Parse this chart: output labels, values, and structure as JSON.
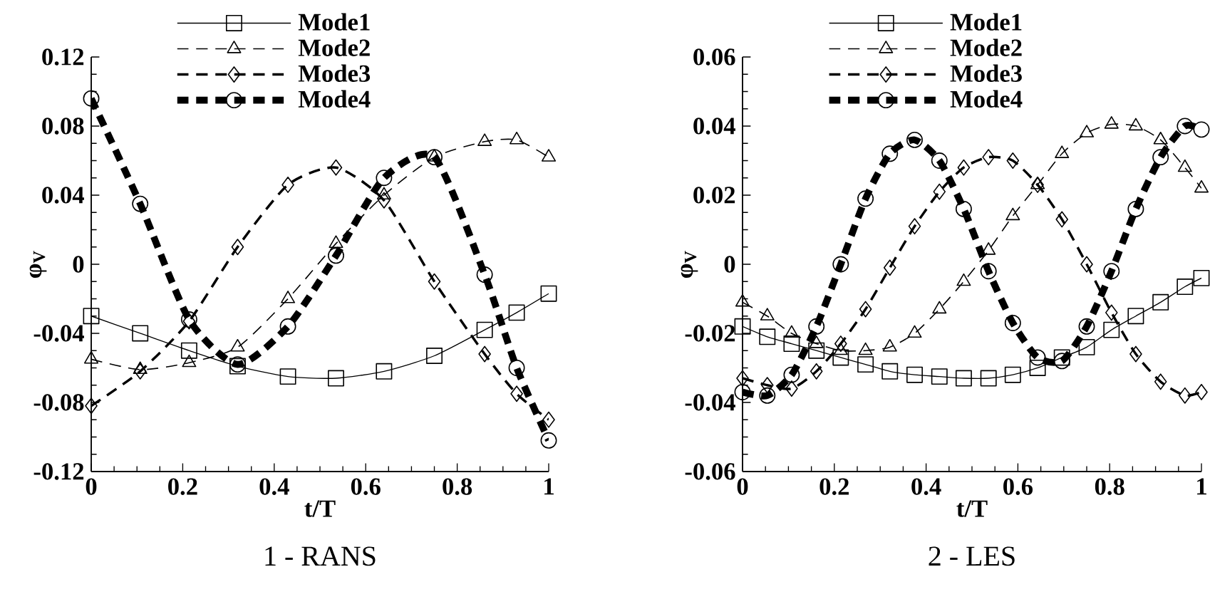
{
  "chart_data": [
    {
      "type": "line",
      "title": "1 - RANS",
      "xlabel": "t/T",
      "ylabel": "φ$_{V}$",
      "legend": "top",
      "x": [
        0,
        0.107,
        0.214,
        0.32,
        0.43,
        0.535,
        0.64,
        0.75,
        0.86,
        0.93,
        1
      ],
      "xlim": [
        0,
        1
      ],
      "ylim": [
        -0.12,
        0.12
      ],
      "xticks": [
        0,
        0.2,
        0.4,
        0.6,
        0.8,
        1
      ],
      "yticks": [
        -0.12,
        -0.08,
        -0.04,
        0,
        0.04,
        0.08,
        0.12
      ],
      "series": [
        {
          "name": "Mode1",
          "color": "#000000",
          "marker": "square",
          "line_style": "solid",
          "values": [
            -0.03,
            -0.04,
            -0.05,
            -0.059,
            -0.065,
            -0.066,
            -0.062,
            -0.053,
            -0.038,
            -0.028,
            -0.017
          ]
        },
        {
          "name": "Mode2",
          "color": "#000000",
          "marker": "triangle",
          "line_style": "dashed",
          "values": [
            -0.055,
            -0.061,
            -0.057,
            -0.048,
            -0.02,
            0.012,
            0.04,
            0.062,
            0.071,
            0.072,
            0.062
          ]
        },
        {
          "name": "Mode3",
          "color": "#000000",
          "marker": "diamond",
          "line_style": "dashed",
          "values": [
            -0.082,
            -0.062,
            -0.033,
            0.01,
            0.046,
            0.056,
            0.037,
            -0.01,
            -0.052,
            -0.075,
            -0.09
          ]
        },
        {
          "name": "Mode4",
          "color": "#000000",
          "marker": "circle",
          "line_style": "dashed",
          "values": [
            0.096,
            0.035,
            -0.032,
            -0.058,
            -0.036,
            0.005,
            0.05,
            0.062,
            -0.006,
            -0.06,
            -0.102
          ]
        }
      ]
    },
    {
      "type": "line",
      "title": "2 - LES",
      "xlabel": "t/T",
      "ylabel": "φ$_{V}$",
      "legend": "top",
      "x": [
        0,
        0.054,
        0.107,
        0.161,
        0.214,
        0.268,
        0.321,
        0.375,
        0.429,
        0.482,
        0.536,
        0.589,
        0.643,
        0.696,
        0.75,
        0.804,
        0.857,
        0.911,
        0.964,
        1
      ],
      "xlim": [
        0,
        1
      ],
      "ylim": [
        -0.06,
        0.06
      ],
      "xticks": [
        0,
        0.2,
        0.4,
        0.6,
        0.8,
        1
      ],
      "yticks": [
        -0.06,
        -0.04,
        -0.02,
        0,
        0.02,
        0.04,
        0.06
      ],
      "series": [
        {
          "name": "Mode1",
          "color": "#000000",
          "marker": "square",
          "line_style": "solid",
          "values": [
            -0.018,
            -0.021,
            -0.023,
            -0.025,
            -0.027,
            -0.029,
            -0.031,
            -0.032,
            -0.0325,
            -0.033,
            -0.033,
            -0.032,
            -0.03,
            -0.027,
            -0.024,
            -0.019,
            -0.015,
            -0.011,
            -0.0065,
            -0.004
          ]
        },
        {
          "name": "Mode2",
          "color": "#000000",
          "marker": "triangle",
          "line_style": "dashed",
          "values": [
            -0.011,
            -0.015,
            -0.02,
            -0.023,
            -0.025,
            -0.025,
            -0.024,
            -0.02,
            -0.013,
            -0.005,
            0.004,
            0.014,
            0.023,
            0.032,
            0.038,
            0.0405,
            0.04,
            0.036,
            0.028,
            0.022
          ]
        },
        {
          "name": "Mode3",
          "color": "#000000",
          "marker": "diamond",
          "line_style": "dashed",
          "values": [
            -0.033,
            -0.035,
            -0.036,
            -0.031,
            -0.023,
            -0.013,
            -0.001,
            0.011,
            0.021,
            0.028,
            0.031,
            0.03,
            0.023,
            0.013,
            0,
            -0.014,
            -0.026,
            -0.034,
            -0.038,
            -0.037
          ]
        },
        {
          "name": "Mode4",
          "color": "#000000",
          "marker": "circle",
          "line_style": "dashed",
          "values": [
            -0.037,
            -0.038,
            -0.032,
            -0.018,
            0,
            0.019,
            0.032,
            0.036,
            0.03,
            0.016,
            -0.002,
            -0.017,
            -0.027,
            -0.028,
            -0.018,
            -0.002,
            0.016,
            0.031,
            0.04,
            0.039
          ]
        }
      ]
    }
  ]
}
